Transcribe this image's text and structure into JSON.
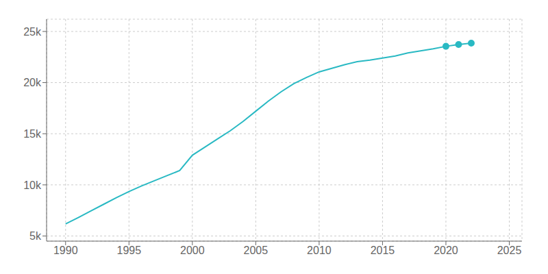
{
  "chart_data": {
    "type": "line",
    "x": [
      1990,
      1991,
      1992,
      1993,
      1994,
      1995,
      1996,
      1997,
      1998,
      1999,
      2000,
      2001,
      2002,
      2003,
      2004,
      2005,
      2006,
      2007,
      2008,
      2009,
      2010,
      2011,
      2012,
      2013,
      2014,
      2015,
      2016,
      2017,
      2018,
      2019,
      2020,
      2021,
      2022
    ],
    "series": [
      {
        "type": "line",
        "marker": "none",
        "color": "#29b9c3",
        "values": [
          6188,
          6800,
          7450,
          8100,
          8750,
          9350,
          9900,
          10400,
          10900,
          11400,
          12900,
          13700,
          14500,
          15300,
          16200,
          17200,
          18200,
          19100,
          19900,
          20500,
          21048,
          21400,
          21750,
          22050,
          22200,
          22400,
          22600,
          22900,
          23100,
          23300,
          23547,
          23726,
          23852
        ]
      },
      {
        "type": "scatter",
        "marker": "circle",
        "color": "#29b9c3",
        "values": [
          null,
          null,
          null,
          null,
          null,
          null,
          null,
          null,
          null,
          null,
          null,
          null,
          null,
          null,
          null,
          null,
          null,
          null,
          null,
          null,
          null,
          null,
          null,
          null,
          null,
          null,
          null,
          null,
          null,
          null,
          23547,
          23726,
          23852
        ]
      }
    ],
    "xlim": [
      1988.5,
      2026
    ],
    "xticks": [
      1990,
      1995,
      2000,
      2005,
      2010,
      2015,
      2020,
      2025
    ],
    "ylim": [
      4500,
      26200
    ],
    "yticks": [
      {
        "value": 5000,
        "label": "5k"
      },
      {
        "value": 10000,
        "label": "10k"
      },
      {
        "value": 15000,
        "label": "15k"
      },
      {
        "value": 20000,
        "label": "20k"
      },
      {
        "value": 25000,
        "label": "25k"
      }
    ],
    "grid": true
  }
}
